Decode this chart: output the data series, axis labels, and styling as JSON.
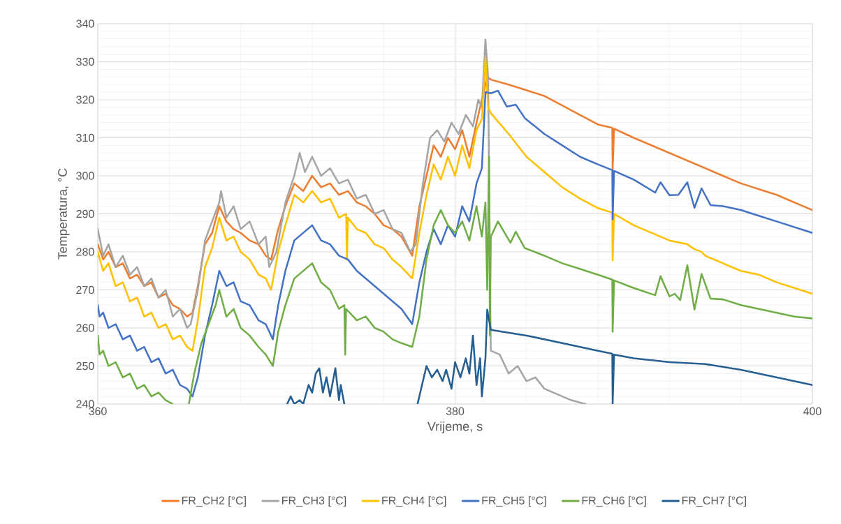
{
  "chart_data": {
    "type": "line",
    "xlabel": "Vrijeme, s",
    "ylabel": "Temperatura, °C",
    "xlim": [
      360,
      400
    ],
    "ylim": [
      240,
      340
    ],
    "xticks": [
      360,
      380,
      400
    ],
    "yticks": [
      240,
      250,
      260,
      270,
      280,
      290,
      300,
      310,
      320,
      330,
      340
    ],
    "grid": true,
    "legend": "bottom",
    "line_style": "solid",
    "series": [
      {
        "name": "FR_CH2 [°C]",
        "color": "#ed7d31",
        "x": [
          360,
          360.3,
          360.6,
          361,
          361.4,
          361.8,
          362.2,
          362.6,
          363,
          363.4,
          363.8,
          364.2,
          364.6,
          365,
          365.3,
          365.6,
          366,
          366.4,
          366.8,
          367.2,
          367.6,
          368,
          368.5,
          369,
          369.4,
          369.7,
          370.1,
          370.5,
          371,
          371.5,
          372,
          372.5,
          373,
          373.5,
          374,
          374.5,
          375,
          375.5,
          376,
          376.5,
          377,
          377.6,
          378,
          378.4,
          378.8,
          379.2,
          379.6,
          380,
          380.4,
          380.8,
          381.2,
          381.5,
          381.8,
          382,
          383,
          384,
          385,
          386,
          387,
          388,
          388.8,
          388.82,
          388.9,
          390,
          391,
          392,
          393,
          394,
          395,
          396,
          397,
          398,
          399,
          400
        ],
        "values": [
          282,
          278,
          280,
          276,
          277,
          273,
          274,
          271,
          272,
          268,
          269,
          266,
          265,
          263,
          264,
          271,
          282,
          285,
          292,
          288,
          286,
          285,
          283,
          282,
          279,
          278,
          286,
          292,
          298,
          296,
          300,
          297,
          298,
          295,
          296,
          293,
          292,
          290,
          287,
          286,
          284,
          279,
          292,
          300,
          308,
          305,
          310,
          307,
          312,
          305,
          314,
          320,
          326,
          325.3,
          324,
          322.5,
          321,
          318.5,
          316,
          313.5,
          312.6,
          301.5,
          312.4,
          310,
          308,
          306,
          304,
          302,
          300,
          298,
          296.5,
          295,
          293,
          291
        ]
      },
      {
        "name": "FR_CH3 [°C]",
        "color": "#a5a5a5",
        "x": [
          360,
          360.3,
          360.6,
          361,
          361.4,
          361.8,
          362.2,
          362.6,
          363,
          363.4,
          363.8,
          364.2,
          364.6,
          365,
          365.2,
          365.6,
          366,
          366.4,
          366.8,
          366.9,
          367.2,
          367.6,
          368,
          368.5,
          369,
          369.4,
          369.6,
          370,
          370.5,
          371,
          371.3,
          371.6,
          372,
          372.5,
          373,
          373.5,
          374,
          374.5,
          375,
          375.5,
          376,
          376.5,
          377,
          377.5,
          377.8,
          378.2,
          378.6,
          379,
          379.4,
          379.8,
          380.2,
          380.6,
          381,
          381.3,
          381.5,
          381.7,
          381.85,
          382,
          382.5,
          383,
          383.5,
          384,
          384.5,
          385,
          385.5,
          386,
          386.5,
          387.3
        ],
        "values": [
          286,
          279,
          282,
          276,
          279,
          274,
          276,
          271,
          273,
          268,
          270,
          263,
          265,
          260,
          261,
          270,
          283,
          288,
          293,
          296,
          289,
          292,
          286,
          288,
          282,
          284,
          276,
          280,
          293,
          300,
          306,
          301,
          305,
          300,
          302,
          298,
          299,
          294,
          295,
          290,
          291,
          286,
          285,
          280,
          282,
          298,
          310,
          312,
          309,
          314,
          311,
          316,
          313,
          320,
          318,
          335.8,
          326,
          254,
          253,
          248,
          250,
          246,
          247,
          244,
          243,
          242,
          241,
          240
        ]
      },
      {
        "name": "FR_CH4 [°C]",
        "color": "#ffc000",
        "x": [
          360,
          360.3,
          360.6,
          361,
          361.4,
          361.8,
          362.2,
          362.6,
          363,
          363.4,
          363.8,
          364.2,
          364.6,
          365,
          365.3,
          365.6,
          366,
          366.4,
          366.8,
          367.2,
          367.6,
          368,
          368.5,
          369,
          369.4,
          369.7,
          370.1,
          370.5,
          371,
          371.5,
          372,
          372.5,
          373,
          373.5,
          373.9,
          373.95,
          374,
          374.5,
          375,
          375.5,
          376,
          376.5,
          377,
          377.6,
          378,
          378.4,
          378.8,
          379.2,
          379.6,
          380,
          380.4,
          380.8,
          381.2,
          381.5,
          381.7,
          381.85,
          382,
          383,
          384,
          385,
          386,
          387,
          388,
          388.8,
          388.82,
          388.9,
          390,
          391,
          392,
          393,
          393.4,
          393.8,
          394,
          395,
          396,
          397,
          398,
          399,
          400
        ],
        "values": [
          280,
          275,
          277,
          271,
          272,
          267,
          268,
          263,
          264,
          260,
          261,
          257,
          258,
          255,
          254,
          262,
          276,
          281,
          289,
          283,
          284,
          280,
          278,
          274,
          273,
          270,
          280,
          287,
          295,
          293,
          296,
          293,
          294,
          289,
          290,
          278,
          289,
          286,
          285,
          282,
          281,
          278,
          276,
          273,
          285,
          295,
          303,
          299,
          305,
          300,
          308,
          302,
          312,
          315,
          331,
          318,
          316.5,
          311,
          305,
          301,
          297,
          294,
          291.5,
          290.3,
          277.8,
          290,
          287,
          285,
          283,
          282,
          280.7,
          280,
          279,
          277,
          275,
          274,
          272,
          270.5,
          269
        ]
      },
      {
        "name": "FR_CH5 [°C]",
        "color": "#4472c4",
        "x": [
          360,
          360.1,
          360.3,
          360.6,
          361,
          361.4,
          361.8,
          362.2,
          362.6,
          363,
          363.4,
          363.8,
          364.2,
          364.6,
          365,
          365.3,
          365.6,
          366,
          366.4,
          366.8,
          367.2,
          367.6,
          368,
          368.5,
          369,
          369.4,
          369.8,
          370.1,
          370.5,
          371,
          371.5,
          372,
          372.5,
          373,
          373.5,
          374,
          374.5,
          375,
          375.5,
          376,
          376.5,
          377,
          377.6,
          378,
          378.4,
          378.8,
          379.2,
          379.6,
          380,
          380.4,
          380.8,
          381.2,
          381.5,
          381.7,
          382,
          382.4,
          382.9,
          383.4,
          383.9,
          385,
          386,
          387,
          388,
          388.8,
          388.82,
          388.9,
          390,
          391.2,
          391.5,
          392,
          392.5,
          393,
          393.4,
          393.8,
          394.3,
          395,
          396,
          397,
          398,
          399,
          400
        ],
        "values": [
          266,
          263,
          264,
          260,
          261,
          257,
          258,
          254,
          255,
          251,
          252,
          248,
          249,
          245,
          244,
          242,
          247,
          258,
          266,
          275,
          271,
          272,
          267,
          266,
          262,
          261,
          257,
          266,
          275,
          283,
          285,
          287,
          283,
          282,
          279,
          278,
          275,
          273,
          271,
          269,
          267,
          265,
          261,
          272,
          280,
          286,
          282,
          287,
          284,
          292,
          288,
          298,
          302,
          322,
          321.7,
          322.4,
          318.2,
          318.7,
          315.2,
          311,
          308,
          305,
          303,
          301.5,
          288.6,
          301.3,
          299,
          295.6,
          298.3,
          294.9,
          295,
          298.3,
          291.6,
          296.7,
          292.3,
          292,
          291,
          289.5,
          288,
          286.5,
          285
        ]
      },
      {
        "name": "FR_CH6 [°C]",
        "color": "#70ad47",
        "x": [
          360,
          360.1,
          360.3,
          360.6,
          361,
          361.4,
          361.8,
          362.2,
          362.6,
          363,
          363.4,
          363.8,
          364.2,
          364.5,
          365.1,
          365.4,
          365.8,
          366.2,
          366.6,
          366.8,
          367.2,
          367.6,
          368,
          368.5,
          369,
          369.4,
          369.8,
          370.1,
          370.5,
          371,
          371.5,
          372,
          372.5,
          373,
          373.5,
          373.8,
          373.85,
          373.9,
          374.5,
          375,
          375.5,
          376,
          376.5,
          377,
          377.6,
          378,
          378.4,
          378.8,
          379.2,
          379.6,
          380,
          380.4,
          380.8,
          381.2,
          381.5,
          381.7,
          381.8,
          381.9,
          381.95,
          382,
          382.4,
          383.1,
          383.4,
          383.9,
          385,
          386,
          387,
          388,
          388.8,
          388.82,
          388.9,
          390,
          391.2,
          391.5,
          392,
          392.3,
          392.6,
          393,
          393.4,
          393.8,
          394.3,
          395,
          396,
          397,
          398,
          399,
          400
        ],
        "values": [
          258,
          253,
          254,
          250,
          251,
          247,
          248,
          244,
          245,
          242,
          243,
          241,
          240,
          null,
          240,
          248,
          256,
          261,
          266,
          270,
          263,
          265,
          260,
          258,
          255,
          253,
          250,
          259,
          266,
          273,
          275,
          277,
          272,
          270,
          265,
          266,
          253,
          265,
          262,
          263,
          260,
          259,
          257,
          256,
          255,
          263,
          278,
          287,
          291,
          287,
          285,
          288,
          283,
          292,
          284,
          293,
          270,
          305,
          258,
          284,
          288,
          282.4,
          285.3,
          281,
          279,
          277,
          275.5,
          274,
          272.7,
          259,
          272.5,
          270.5,
          268.6,
          273.6,
          268.3,
          269,
          267.3,
          276.5,
          264.8,
          274.2,
          267.7,
          267.5,
          266,
          265,
          264,
          263,
          262.5
        ]
      },
      {
        "name": "FR_CH7 [°C]",
        "color": "#255e91",
        "x": [
          370.6,
          370.8,
          371,
          371.3,
          371.5,
          371.8,
          372,
          372.2,
          372.4,
          372.6,
          372.8,
          373,
          373.3,
          373.5,
          373.6,
          373.8,
          375,
          377.9,
          378.2,
          378.4,
          378.7,
          379,
          379.3,
          379.5,
          379.8,
          380,
          380.3,
          380.6,
          380.8,
          381,
          381.2,
          381.4,
          381.5,
          381.7,
          381.8,
          382,
          384,
          386,
          388,
          388.8,
          388.82,
          388.9,
          390,
          392,
          394,
          396,
          398,
          400
        ],
        "values": [
          240,
          242,
          240,
          241,
          240,
          245,
          243,
          248,
          249.4,
          243,
          247,
          242,
          249.4,
          241,
          245,
          240,
          null,
          240,
          246,
          250,
          247,
          249,
          246,
          249,
          244,
          251,
          247,
          252,
          248,
          258,
          245,
          252,
          242,
          252,
          264.8,
          259.5,
          258,
          256,
          254,
          253.2,
          240,
          253,
          252,
          251,
          250.5,
          249,
          247,
          245
        ]
      }
    ]
  }
}
